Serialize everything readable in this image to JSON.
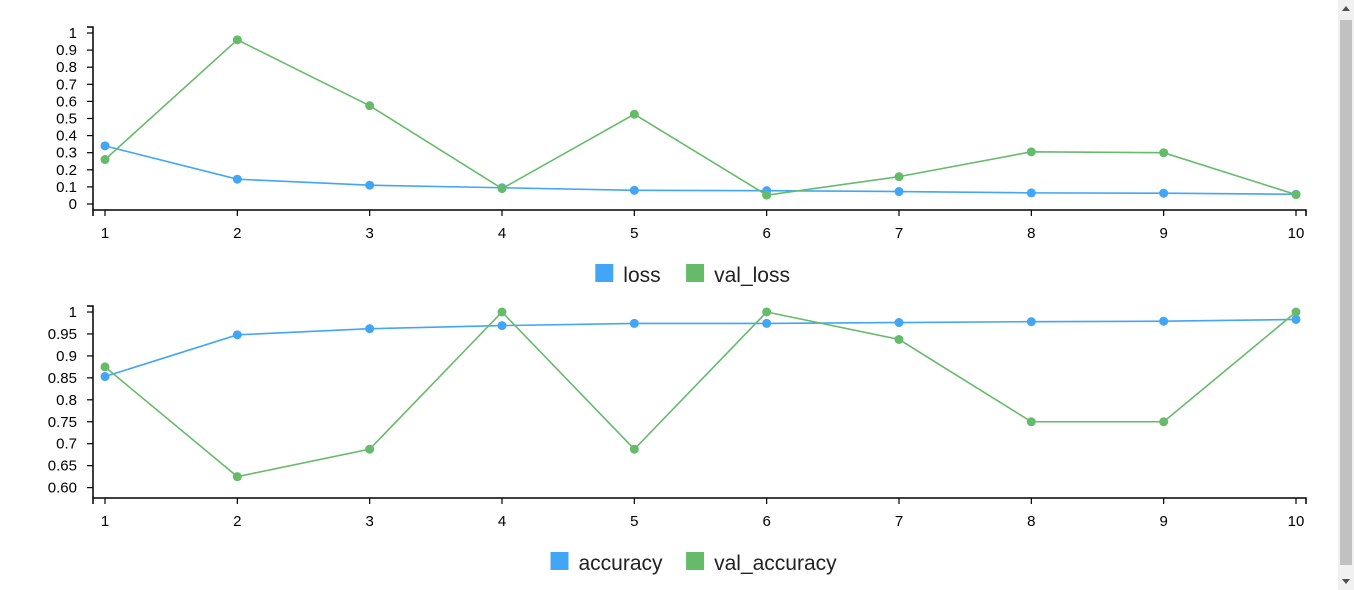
{
  "colors": {
    "blue": "#42a5f5",
    "green": "#66bb6a"
  },
  "chart_data": [
    {
      "type": "line",
      "x": [
        1,
        2,
        3,
        4,
        5,
        6,
        7,
        8,
        9,
        10
      ],
      "x_tick_labels": [
        "1",
        "2",
        "3",
        "4",
        "5",
        "6",
        "7",
        "8",
        "9",
        "10"
      ],
      "y_tick_labels": [
        "0",
        "0.1",
        "0.2",
        "0.3",
        "0.4",
        "0.5",
        "0.6",
        "0.7",
        "0.8",
        "0.9",
        "1"
      ],
      "ylim": [
        0,
        1
      ],
      "grid": false,
      "legend_position": "bottom-center",
      "series": [
        {
          "name": "loss",
          "color": "#42a5f5",
          "values": [
            0.34,
            0.145,
            0.11,
            0.095,
            0.08,
            0.078,
            0.073,
            0.065,
            0.063,
            0.057
          ]
        },
        {
          "name": "val_loss",
          "color": "#66bb6a",
          "values": [
            0.26,
            0.96,
            0.575,
            0.09,
            0.525,
            0.052,
            0.16,
            0.305,
            0.3,
            0.055
          ]
        }
      ]
    },
    {
      "type": "line",
      "x": [
        1,
        2,
        3,
        4,
        5,
        6,
        7,
        8,
        9,
        10
      ],
      "x_tick_labels": [
        "1",
        "2",
        "3",
        "4",
        "5",
        "6",
        "7",
        "8",
        "9",
        "10"
      ],
      "y_tick_labels": [
        "0.60",
        "0.65",
        "0.7",
        "0.75",
        "0.8",
        "0.85",
        "0.9",
        "0.95",
        "1"
      ],
      "ylim": [
        0.59,
        1
      ],
      "grid": false,
      "legend_position": "bottom-center",
      "series": [
        {
          "name": "accuracy",
          "color": "#42a5f5",
          "values": [
            0.853,
            0.948,
            0.962,
            0.969,
            0.974,
            0.974,
            0.976,
            0.978,
            0.979,
            0.983
          ]
        },
        {
          "name": "val_accuracy",
          "color": "#66bb6a",
          "values": [
            0.875,
            0.625,
            0.6875,
            1.0,
            0.6875,
            1.0,
            0.9375,
            0.75,
            0.75,
            1.0
          ]
        }
      ]
    }
  ]
}
